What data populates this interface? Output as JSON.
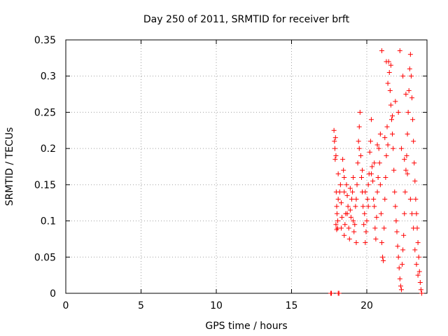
{
  "chart_data": {
    "type": "scatter",
    "title": "Day 250 of 2011, SRMTID for receiver brft",
    "xlabel": "GPS time / hours",
    "ylabel": "SRMTID / TECUs",
    "xlim": [
      0,
      24
    ],
    "ylim": [
      0,
      0.35
    ],
    "xticks": [
      0,
      5,
      10,
      15,
      20
    ],
    "xtick_labels": [
      "0",
      "5",
      "10",
      "15",
      "20"
    ],
    "yticks": [
      0,
      0.05,
      0.1,
      0.15,
      0.2,
      0.25,
      0.3,
      0.35
    ],
    "ytick_labels": [
      "0",
      "0.05",
      "0.1",
      "0.15",
      "0.2",
      "0.25",
      "0.3",
      "0.35"
    ],
    "grid": true,
    "marker": "plus",
    "color": "#ff0000",
    "series": [
      {
        "name": "SRMTID",
        "points": [
          [
            17.6,
            0.0
          ],
          [
            17.65,
            0.0
          ],
          [
            18.1,
            0.0
          ],
          [
            18.15,
            0.0
          ],
          [
            17.82,
            0.225
          ],
          [
            17.85,
            0.21
          ],
          [
            17.88,
            0.2
          ],
          [
            17.9,
            0.185
          ],
          [
            17.92,
            0.215
          ],
          [
            17.95,
            0.19
          ],
          [
            17.97,
            0.14
          ],
          [
            18.0,
            0.12
          ],
          [
            18.02,
            0.11
          ],
          [
            18.05,
            0.09
          ],
          [
            18.0,
            0.088
          ],
          [
            18.07,
            0.1
          ],
          [
            18.1,
            0.13
          ],
          [
            18.2,
            0.14
          ],
          [
            18.25,
            0.15
          ],
          [
            18.3,
            0.125
          ],
          [
            18.35,
            0.105
          ],
          [
            18.4,
            0.185
          ],
          [
            18.45,
            0.17
          ],
          [
            18.5,
            0.16
          ],
          [
            18.5,
            0.08
          ],
          [
            18.55,
            0.095
          ],
          [
            18.6,
            0.11
          ],
          [
            18.65,
            0.15
          ],
          [
            18.7,
            0.135
          ],
          [
            18.75,
            0.12
          ],
          [
            18.8,
            0.09
          ],
          [
            18.85,
            0.075
          ],
          [
            18.9,
            0.115
          ],
          [
            18.95,
            0.105
          ],
          [
            19.0,
            0.13
          ],
          [
            19.05,
            0.14
          ],
          [
            19.1,
            0.1
          ],
          [
            19.15,
            0.085
          ],
          [
            19.2,
            0.095
          ],
          [
            19.25,
            0.12
          ],
          [
            19.3,
            0.07
          ],
          [
            19.35,
            0.15
          ],
          [
            19.4,
            0.18
          ],
          [
            19.45,
            0.21
          ],
          [
            19.5,
            0.23
          ],
          [
            19.55,
            0.25
          ],
          [
            19.6,
            0.19
          ],
          [
            19.65,
            0.16
          ],
          [
            19.7,
            0.14
          ],
          [
            19.75,
            0.12
          ],
          [
            19.8,
            0.095
          ],
          [
            19.85,
            0.11
          ],
          [
            19.9,
            0.07
          ],
          [
            19.95,
            0.085
          ],
          [
            20.0,
            0.1
          ],
          [
            20.05,
            0.13
          ],
          [
            20.1,
            0.15
          ],
          [
            20.15,
            0.165
          ],
          [
            20.2,
            0.195
          ],
          [
            20.25,
            0.21
          ],
          [
            20.3,
            0.24
          ],
          [
            20.35,
            0.175
          ],
          [
            20.4,
            0.155
          ],
          [
            20.45,
            0.13
          ],
          [
            20.5,
            0.12
          ],
          [
            20.55,
            0.09
          ],
          [
            20.6,
            0.075
          ],
          [
            20.65,
            0.105
          ],
          [
            20.7,
            0.14
          ],
          [
            20.75,
            0.16
          ],
          [
            20.8,
            0.2
          ],
          [
            20.85,
            0.18
          ],
          [
            20.9,
            0.15
          ],
          [
            20.95,
            0.11
          ],
          [
            21.0,
            0.07
          ],
          [
            21.05,
            0.05
          ],
          [
            21.1,
            0.045
          ],
          [
            21.15,
            0.09
          ],
          [
            21.2,
            0.13
          ],
          [
            21.25,
            0.16
          ],
          [
            21.3,
            0.19
          ],
          [
            21.35,
            0.23
          ],
          [
            21.4,
            0.29
          ],
          [
            21.45,
            0.32
          ],
          [
            21.5,
            0.305
          ],
          [
            21.55,
            0.28
          ],
          [
            21.6,
            0.26
          ],
          [
            21.65,
            0.24
          ],
          [
            21.7,
            0.22
          ],
          [
            21.75,
            0.2
          ],
          [
            21.8,
            0.17
          ],
          [
            21.85,
            0.14
          ],
          [
            21.9,
            0.12
          ],
          [
            21.95,
            0.1
          ],
          [
            22.0,
            0.085
          ],
          [
            22.05,
            0.065
          ],
          [
            22.1,
            0.05
          ],
          [
            22.15,
            0.035
          ],
          [
            22.2,
            0.02
          ],
          [
            22.25,
            0.01
          ],
          [
            22.3,
            0.005
          ],
          [
            22.35,
            0.04
          ],
          [
            22.4,
            0.06
          ],
          [
            22.45,
            0.08
          ],
          [
            22.5,
            0.11
          ],
          [
            22.55,
            0.14
          ],
          [
            22.6,
            0.17
          ],
          [
            22.65,
            0.19
          ],
          [
            22.7,
            0.22
          ],
          [
            22.75,
            0.25
          ],
          [
            22.8,
            0.28
          ],
          [
            22.85,
            0.31
          ],
          [
            22.9,
            0.33
          ],
          [
            22.95,
            0.3
          ],
          [
            23.0,
            0.27
          ],
          [
            23.05,
            0.24
          ],
          [
            23.1,
            0.21
          ],
          [
            23.15,
            0.18
          ],
          [
            23.2,
            0.155
          ],
          [
            23.25,
            0.13
          ],
          [
            23.3,
            0.11
          ],
          [
            23.35,
            0.09
          ],
          [
            23.4,
            0.07
          ],
          [
            23.45,
            0.05
          ],
          [
            23.5,
            0.03
          ],
          [
            23.55,
            0.015
          ],
          [
            23.6,
            0.005
          ],
          [
            23.65,
            0.0
          ],
          [
            21.0,
            0.335
          ],
          [
            21.3,
            0.32
          ],
          [
            21.6,
            0.315
          ],
          [
            22.2,
            0.335
          ],
          [
            22.4,
            0.3
          ],
          [
            22.6,
            0.275
          ],
          [
            22.1,
            0.25
          ],
          [
            21.9,
            0.265
          ],
          [
            21.7,
            0.245
          ],
          [
            22.3,
            0.2
          ],
          [
            22.5,
            0.185
          ],
          [
            22.7,
            0.165
          ],
          [
            22.9,
            0.13
          ],
          [
            23.0,
            0.11
          ],
          [
            23.1,
            0.09
          ],
          [
            23.2,
            0.06
          ],
          [
            23.3,
            0.04
          ],
          [
            23.4,
            0.025
          ],
          [
            21.2,
            0.215
          ],
          [
            21.4,
            0.205
          ],
          [
            20.9,
            0.22
          ],
          [
            20.7,
            0.205
          ],
          [
            20.5,
            0.18
          ],
          [
            20.3,
            0.165
          ],
          [
            20.1,
            0.12
          ],
          [
            19.9,
            0.14
          ],
          [
            19.7,
            0.17
          ],
          [
            19.5,
            0.2
          ],
          [
            19.3,
            0.13
          ],
          [
            19.1,
            0.16
          ],
          [
            18.9,
            0.145
          ],
          [
            18.7,
            0.11
          ],
          [
            18.5,
            0.14
          ],
          [
            18.3,
            0.09
          ],
          [
            18.1,
            0.165
          ],
          [
            17.95,
            0.095
          ]
        ]
      }
    ]
  }
}
